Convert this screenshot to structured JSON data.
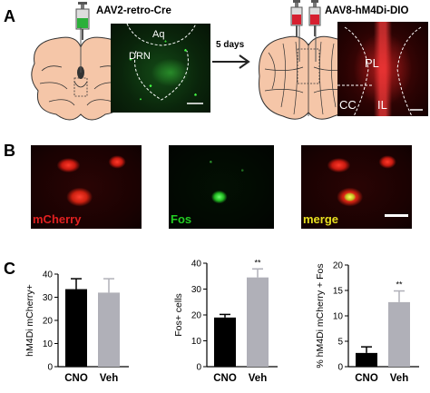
{
  "panels": {
    "a": "A",
    "b": "B",
    "c": "C"
  },
  "panel_a": {
    "virus_left": "AAV2-retro-Cre",
    "virus_right": "AAV8-hM4Di-DIO",
    "interval": "5 days",
    "labels_left": [
      "Aq",
      "DRN"
    ],
    "labels_right": [
      "PL",
      "CC",
      "IL"
    ]
  },
  "panel_b": {
    "image_labels": [
      "mCherry",
      "Fos",
      "merge"
    ],
    "label_colors": [
      "#e02020",
      "#22cc22",
      "#e8e020"
    ]
  },
  "chart_data": [
    {
      "type": "bar",
      "categories": [
        "CNO",
        "Veh"
      ],
      "values": [
        33.5,
        32
      ],
      "errors": [
        4.5,
        6
      ],
      "ylabel": "hM4Di mCherry+",
      "ylim": [
        0,
        40
      ],
      "yticks": [
        0,
        10,
        20,
        30,
        40
      ],
      "significance": [
        "",
        ""
      ],
      "colors": [
        "#000000",
        "#b0b0b8"
      ]
    },
    {
      "type": "bar",
      "categories": [
        "CNO",
        "Veh"
      ],
      "values": [
        19,
        34.5
      ],
      "errors": [
        1.2,
        3.3
      ],
      "ylabel": "Fos+ cells",
      "ylim": [
        0,
        40
      ],
      "yticks": [
        0,
        10,
        20,
        30,
        40
      ],
      "significance": [
        "",
        "**"
      ],
      "colors": [
        "#000000",
        "#b0b0b8"
      ]
    },
    {
      "type": "bar",
      "categories": [
        "CNO",
        "Veh"
      ],
      "values": [
        2.7,
        12.7
      ],
      "errors": [
        1.2,
        2.2
      ],
      "ylabel": "% hM4Di mCherry + Fos",
      "ylim": [
        0,
        20
      ],
      "yticks": [
        0,
        5,
        10,
        15,
        20
      ],
      "significance": [
        "",
        "**"
      ],
      "colors": [
        "#000000",
        "#b0b0b8"
      ]
    }
  ]
}
